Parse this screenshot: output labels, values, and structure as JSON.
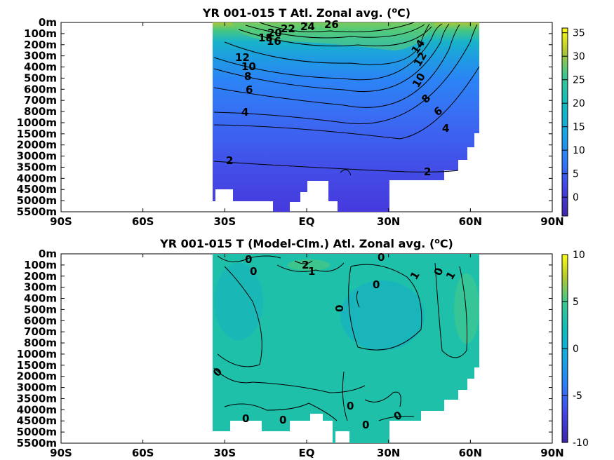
{
  "charts": [
    {
      "title_main": "YR 001-015 T Atl. Zonal avg. (",
      "title_sup": "o",
      "title_end": "C)",
      "type": "heatmap",
      "y_ticks": [
        "0m",
        "100m",
        "200m",
        "300m",
        "400m",
        "500m",
        "600m",
        "700m",
        "800m",
        "1000m",
        "1500m",
        "2000m",
        "3000m",
        "3500m",
        "4000m",
        "4500m",
        "5000m",
        "5500m"
      ],
      "x_ticks": [
        "90S",
        "60S",
        "30S",
        "EQ",
        "30N",
        "60N",
        "90N"
      ],
      "colorbar_ticks": [
        "35",
        "30",
        "25",
        "20",
        "15",
        "10",
        "5",
        "0"
      ],
      "colorbar_range": [
        -4,
        36
      ],
      "contour_labels": [
        "26",
        "24",
        "22",
        "20",
        "16",
        "18",
        "14",
        "12",
        "10",
        "8",
        "6",
        "4",
        "2",
        "14",
        "12",
        "10",
        "8",
        "6",
        "4",
        "2"
      ]
    },
    {
      "title_main": "YR 001-015 T (Model-Clm.) Atl. Zonal avg. (",
      "title_sup": "o",
      "title_end": "C)",
      "type": "heatmap",
      "y_ticks": [
        "0m",
        "100m",
        "200m",
        "300m",
        "400m",
        "500m",
        "600m",
        "700m",
        "800m",
        "1000m",
        "1500m",
        "2000m",
        "3000m",
        "3500m",
        "4000m",
        "4500m",
        "5000m",
        "5500m"
      ],
      "x_ticks": [
        "90S",
        "60S",
        "30S",
        "EQ",
        "30N",
        "60N",
        "90N"
      ],
      "colorbar_ticks": [
        "10",
        "5",
        "0",
        "-5",
        "-10"
      ],
      "colorbar_range": [
        -10,
        10
      ],
      "contour_labels": [
        "0",
        "0",
        "2",
        "1",
        "0",
        "0",
        "1",
        "0",
        "1",
        "0",
        "0",
        "0",
        "0",
        "0",
        "0",
        "0"
      ]
    }
  ],
  "chart_data": [
    {
      "type": "heatmap",
      "title": "YR 001-015 T Atl. Zonal avg. (oC)",
      "x_axis": [
        "90S",
        "60S",
        "30S",
        "EQ",
        "30N",
        "60N",
        "90N"
      ],
      "y_axis": [
        "0m",
        "100m",
        "200m",
        "300m",
        "400m",
        "500m",
        "600m",
        "700m",
        "800m",
        "1000m",
        "1500m",
        "2000m",
        "3000m",
        "3500m",
        "4000m",
        "4500m",
        "5000m",
        "5500m"
      ],
      "colorbar_range": [
        -4,
        36
      ],
      "contour_levels": [
        2,
        4,
        6,
        8,
        10,
        12,
        14,
        16,
        18,
        20,
        22,
        24,
        26
      ],
      "data_extent_lat": [
        -35,
        65
      ]
    },
    {
      "type": "heatmap",
      "title": "YR 001-015 T (Model-Clm.) Atl. Zonal avg. (oC)",
      "x_axis": [
        "90S",
        "60S",
        "30S",
        "EQ",
        "30N",
        "60N",
        "90N"
      ],
      "y_axis": [
        "0m",
        "100m",
        "200m",
        "300m",
        "400m",
        "500m",
        "600m",
        "700m",
        "800m",
        "1000m",
        "1500m",
        "2000m",
        "3000m",
        "3500m",
        "4000m",
        "4500m",
        "5000m",
        "5500m"
      ],
      "colorbar_range": [
        -10,
        10
      ],
      "contour_levels": [
        0,
        1,
        2
      ],
      "data_extent_lat": [
        -35,
        65
      ]
    }
  ]
}
